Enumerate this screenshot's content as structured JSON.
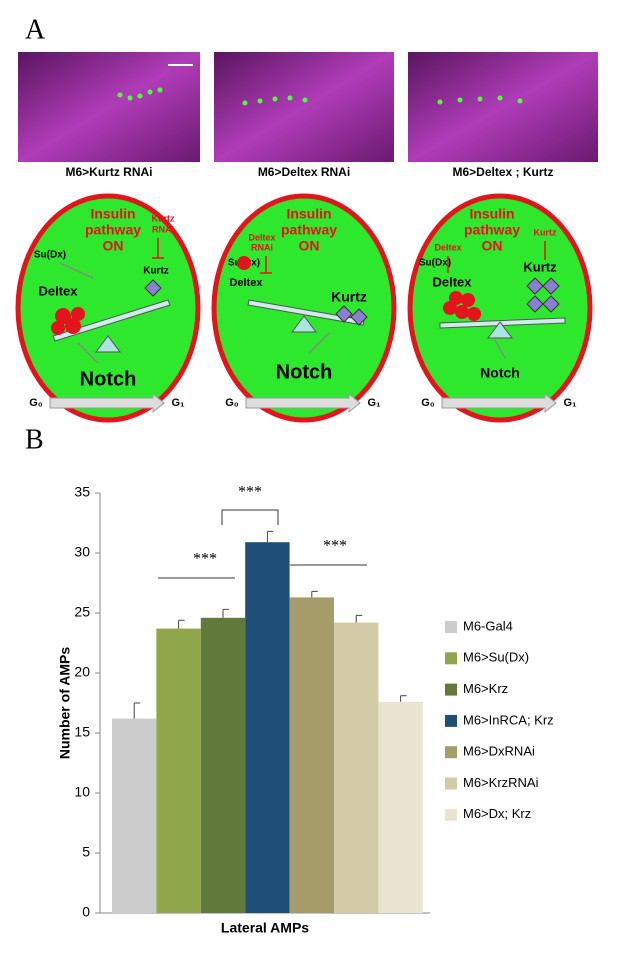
{
  "panel_a": {
    "label": "A",
    "panels": [
      {
        "caption": "M6>Kurtz RNAi",
        "insulin": [
          "Insulin",
          "pathway",
          "ON"
        ],
        "regulators": [
          "Su(Dx)",
          "Kurtz",
          "RNAi"
        ],
        "proteins": [
          "Deltex",
          "Kurtz"
        ],
        "notch": "Notch",
        "g0": "G₀",
        "g1": "G₁"
      },
      {
        "caption": "M6>Deltex RNAi",
        "insulin": [
          "Insulin",
          "pathway",
          "ON"
        ],
        "regulators": [
          "Deltex",
          "RNAi",
          "Su(Dx)"
        ],
        "proteins": [
          "Deltex",
          "Kurtz"
        ],
        "notch": "Notch",
        "g0": "G₀",
        "g1": "G₁"
      },
      {
        "caption": "M6>Deltex ; Kurtz",
        "insulin": [
          "Insulin",
          "pathway",
          "ON"
        ],
        "regulators": [
          "Deltex",
          "Su(Dx)",
          "Kurtz"
        ],
        "proteins": [
          "Deltex",
          "Kurtz"
        ],
        "notch": "Notch",
        "g0": "G₀",
        "g1": "G₁"
      }
    ]
  },
  "chart_data": {
    "type": "bar",
    "label": "B",
    "y_label": "Number of AMPs",
    "categories": [
      "Lateral AMPs"
    ],
    "series": [
      {
        "name": "M6-Gal4",
        "color": "#cccccc",
        "values": [
          16.2
        ],
        "errors": [
          1.3
        ]
      },
      {
        "name": "M6>Su(Dx)",
        "color": "#8fa64a",
        "values": [
          23.7
        ],
        "errors": [
          0.7
        ]
      },
      {
        "name": "M6>Krz",
        "color": "#5f7a3a",
        "values": [
          24.6
        ],
        "errors": [
          0.7
        ]
      },
      {
        "name": "M6>InRCA; Krz",
        "color": "#1f4e79",
        "values": [
          30.9
        ],
        "errors": [
          0.9
        ]
      },
      {
        "name": "M6>DxRNAi",
        "color": "#a59c6a",
        "values": [
          26.3
        ],
        "errors": [
          0.5
        ]
      },
      {
        "name": "M6>KrzRNAi",
        "color": "#d2cba6",
        "values": [
          24.2
        ],
        "errors": [
          0.6
        ]
      },
      {
        "name": "M6>Dx; Krz",
        "color": "#e8e4d0",
        "values": [
          17.6
        ],
        "errors": [
          0.5
        ]
      }
    ],
    "ylim": [
      0,
      35
    ],
    "yticks": [
      0,
      5,
      10,
      15,
      20,
      25,
      30,
      35
    ],
    "annotations": [
      "***",
      "***",
      "***"
    ]
  }
}
